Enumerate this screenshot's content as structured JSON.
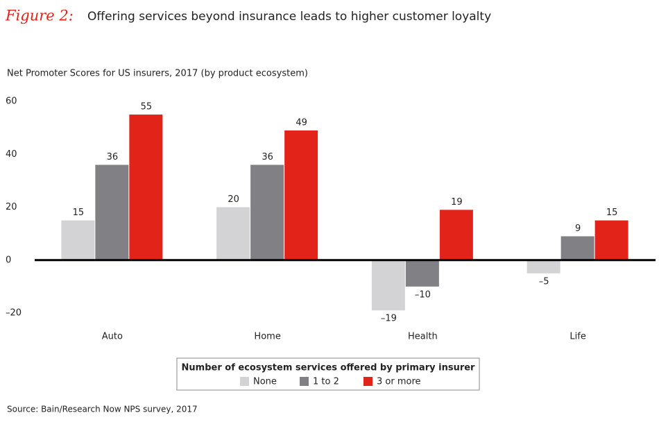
{
  "chart_data": {
    "type": "bar",
    "figure_label": "Figure 2:",
    "title": "Offering services beyond insurance leads to higher customer loyalty",
    "subtitle": "Net Promoter Scores for US insurers, 2017 (by product ecosystem)",
    "categories": [
      "Auto",
      "Home",
      "Health",
      "Life"
    ],
    "series": [
      {
        "name": "None",
        "color": "#d3d3d5",
        "values": [
          15,
          20,
          -19,
          -5
        ],
        "value_labels": [
          "15",
          "20",
          "–19",
          "–5"
        ]
      },
      {
        "name": "1 to 2",
        "color": "#808085",
        "values": [
          36,
          36,
          -10,
          9
        ],
        "value_labels": [
          "36",
          "36",
          "–10",
          "9"
        ]
      },
      {
        "name": "3 or more",
        "color": "#e2231a",
        "values": [
          55,
          49,
          19,
          15
        ],
        "value_labels": [
          "55",
          "49",
          "19",
          "15"
        ]
      }
    ],
    "ylim": [
      -20,
      60
    ],
    "yticks": [
      60,
      40,
      20,
      0,
      {
        "value": -20,
        "label": "–20"
      }
    ],
    "grid": false,
    "legend_title": "Number of ecosystem services offered by primary insurer",
    "legend_position": "bottom",
    "source": "Source: Bain/Research Now NPS survey, 2017"
  }
}
